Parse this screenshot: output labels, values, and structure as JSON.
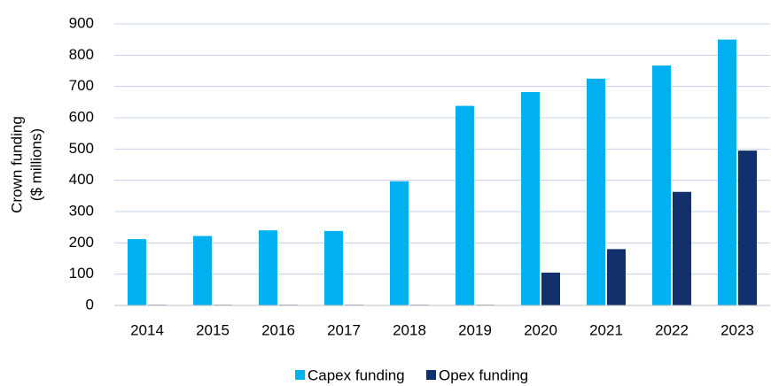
{
  "chart_data": {
    "type": "bar",
    "ylabel": [
      "Crown funding",
      "($ millions)"
    ],
    "categories": [
      "2014",
      "2015",
      "2016",
      "2017",
      "2018",
      "2019",
      "2020",
      "2021",
      "2022",
      "2023"
    ],
    "series": [
      {
        "name": "Capex funding",
        "color": "#00b0f0",
        "values": [
          212,
          222,
          240,
          238,
          397,
          638,
          682,
          725,
          767,
          850
        ]
      },
      {
        "name": "Opex funding",
        "color": "#12306b",
        "values": [
          2,
          2,
          2,
          2,
          2,
          2,
          105,
          180,
          363,
          495
        ]
      }
    ],
    "ylim": [
      0,
      900
    ],
    "yticks": [
      0,
      100,
      200,
      300,
      400,
      500,
      600,
      700,
      800,
      900
    ],
    "grid": true,
    "legend": "bottom"
  }
}
